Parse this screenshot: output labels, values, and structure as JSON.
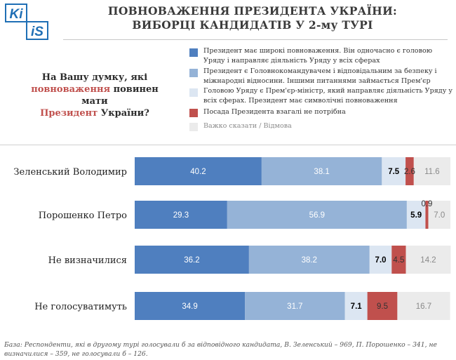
{
  "logo": {
    "text_top": "Ki",
    "text_bottom": "iS",
    "color": "#1f6fb5"
  },
  "title": {
    "line1": "ПОВНОВАЖЕННЯ ПРЕЗИДЕНТА УКРАЇНИ:",
    "line2": "ВИБОРЦІ КАНДИДАТІВ У 2-му ТУРІ"
  },
  "question": {
    "part1": "На Вашу думку, які",
    "highlight1": "повноваження",
    "part2": " повинен мати",
    "highlight2": "Президент",
    "part3": " України?"
  },
  "chart_data": {
    "type": "bar",
    "orientation": "horizontal",
    "stacked": true,
    "categories": [
      "Зеленський Володимир",
      "Порошенко Петро",
      "Не визначилися",
      "Не голосуватимуть"
    ],
    "series": [
      {
        "name": "Президент має широкі повноваження. Він одночасно є головою Уряду і направляє діяльність Уряду у всіх сферах",
        "color": "#4f7fbf",
        "label_color": "#ffffff",
        "values": [
          40.2,
          29.3,
          36.2,
          34.9
        ]
      },
      {
        "name": "Президент є Головнокомандувачем і відповідальним за безпеку і міжнародні відносини. Іншими питаннями займається Прем'єр",
        "color": "#95b3d7",
        "label_color": "#ffffff",
        "values": [
          38.1,
          56.9,
          38.2,
          31.7
        ]
      },
      {
        "name": "Головою Уряду є Прем'єр-міністр, який направляє діяльність Уряду у всіх сферах. Президент має символічні повноваження",
        "color": "#dce6f2",
        "label_color": "#000000",
        "values": [
          7.5,
          5.9,
          7.0,
          7.1
        ]
      },
      {
        "name": "Посада Президента взагалі не потрібна",
        "color": "#c0504d",
        "label_color": "#333333",
        "values": [
          2.6,
          0.9,
          4.5,
          9.5
        ]
      },
      {
        "name": "Важко сказати / Відмова",
        "color": "#ebebeb",
        "label_color": "#8a8a8a",
        "values": [
          11.6,
          7.0,
          14.2,
          16.7
        ]
      }
    ],
    "xlim": [
      0,
      100
    ],
    "legend_position": "top-right"
  },
  "footnote": "База: Респонденти, які в другому турі голосували б за відповідного кандидата, В. Зеленський – 969, П. Порошенко – 341, не визначилися – 359, не голосували б – 126."
}
